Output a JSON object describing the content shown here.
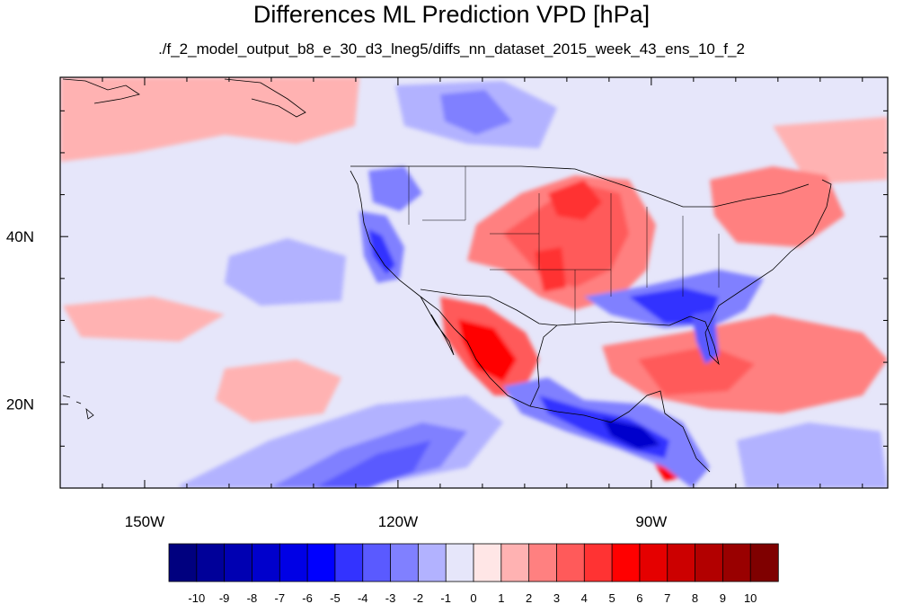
{
  "title": "Differences ML Prediction VPD [hPa]",
  "subtitle": "./f_2_model_output_b8_e_30_d3_lneg5/diffs_nn_dataset_2015_week_43_ens_10_f_2",
  "map": {
    "projection": "cylindrical equidistant",
    "lon_range": [
      -160,
      -62
    ],
    "lat_range": [
      10,
      59
    ],
    "x_ticks": [
      {
        "lon": -150,
        "label": "150W"
      },
      {
        "lon": -120,
        "label": "120W"
      },
      {
        "lon": -90,
        "label": "90W"
      }
    ],
    "y_ticks": [
      {
        "lat": 40,
        "label": "40N"
      },
      {
        "lat": 20,
        "label": "20N"
      }
    ],
    "background_value_color": "#e6e6fa",
    "features": [
      {
        "name": "california-negative-anomaly",
        "value": -4,
        "lon": -119.5,
        "lat": 35.5
      },
      {
        "name": "southeast-us-negative-anomaly",
        "value": -5,
        "lon": -83,
        "lat": 31
      },
      {
        "name": "central-america-negative-anomaly",
        "value": -7,
        "lon": -90,
        "lat": 16
      },
      {
        "name": "great-plains-positive-anomaly",
        "value": 4,
        "lon": -101,
        "lat": 40
      },
      {
        "name": "mexico-positive-anomaly",
        "value": 4,
        "lon": -106,
        "lat": 26
      },
      {
        "name": "gulf-atlantic-positive-anomaly",
        "value": 2,
        "lon": -77,
        "lat": 23
      },
      {
        "name": "pacific-negative-band",
        "value": -3,
        "lon": -125,
        "lat": 12
      },
      {
        "name": "northeast-positive-anomaly",
        "value": 2,
        "lon": -75,
        "lat": 45
      }
    ]
  },
  "colorbar": {
    "labels": [
      "-10",
      "-9",
      "-8",
      "-7",
      "-6",
      "-5",
      "-4",
      "-3",
      "-2",
      "-1",
      "0",
      "1",
      "2",
      "3",
      "4",
      "5",
      "6",
      "7",
      "8",
      "9",
      "10"
    ],
    "colors": [
      "#00007f",
      "#000099",
      "#0000b2",
      "#0000cc",
      "#0000e5",
      "#0000ff",
      "#3333ff",
      "#5a5aff",
      "#8080ff",
      "#b2b2ff",
      "#e6e6fa",
      "#ffe6e6",
      "#ffb2b2",
      "#ff8080",
      "#ff5a5a",
      "#ff3333",
      "#ff0000",
      "#e50000",
      "#cc0000",
      "#b20000",
      "#990000",
      "#7f0000"
    ]
  }
}
